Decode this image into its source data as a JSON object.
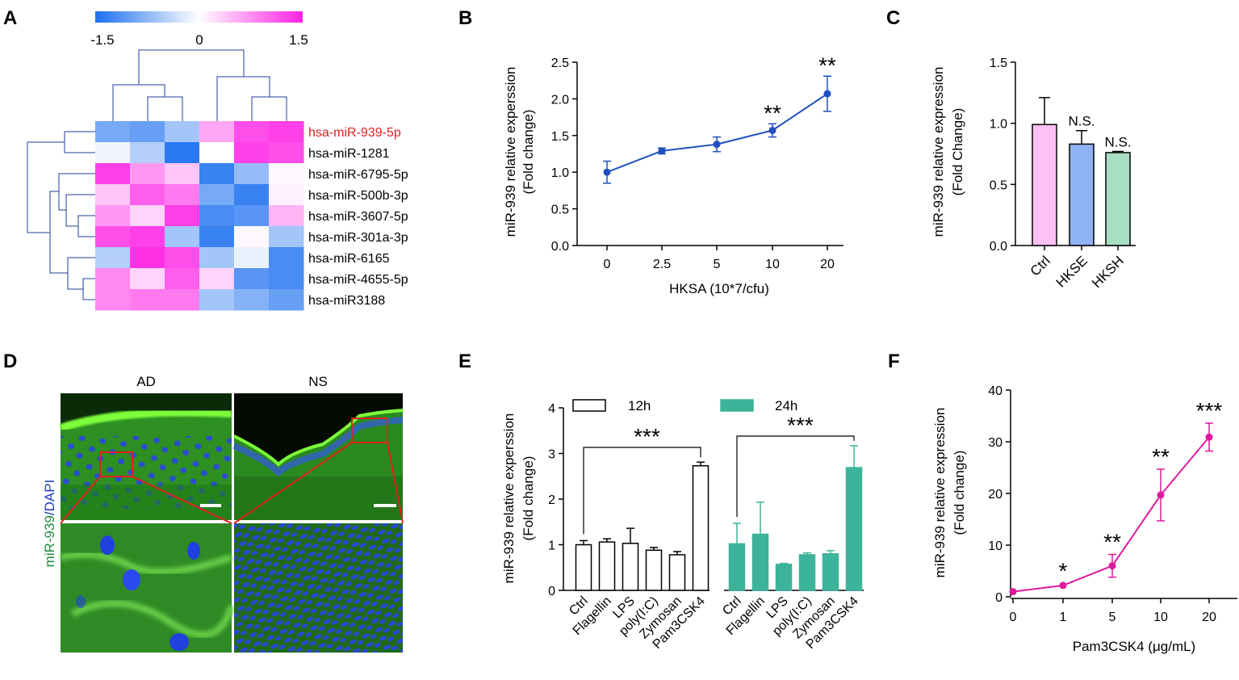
{
  "panels": {
    "A": "A",
    "B": "B",
    "C": "C",
    "D": "D",
    "E": "E",
    "F": "F"
  },
  "colors": {
    "blue": "#1f4fbf",
    "magenta": "#e0189e",
    "teal": "#3db39b",
    "pink": "#ffc0f5",
    "lightblue": "#8fb3f5",
    "mint": "#a8dfc3",
    "low": "#1b6ff0",
    "high": "#ff22e4",
    "red": "#e02020",
    "imgGreen": "#2ea02e",
    "imgBlue": "#1e3fd8",
    "labelGreen": "#1f8a3d",
    "labelBlue": "#1f3fbf"
  },
  "chart_data": [
    {
      "id": "A",
      "type": "heatmap",
      "colorbar": {
        "min": -1.5,
        "mid": 0,
        "max": 1.5,
        "tick_labels": [
          "-1.5",
          "0",
          "1.5"
        ]
      },
      "rows": [
        "hsa-miR-939-5p",
        "hsa-miR-1281",
        "hsa-miR-6795-5p",
        "hsa-miR-500b-3p",
        "hsa-miR-3607-5p",
        "hsa-miR-301a-3p",
        "hsa-miR-6165",
        "hsa-miR-4655-5p",
        "hsa-miR3188"
      ],
      "highlight_row": "hsa-miR-939-5p",
      "values": [
        [
          -0.9,
          -1.0,
          -0.6,
          0.6,
          1.2,
          1.3
        ],
        [
          -0.1,
          -0.5,
          -1.4,
          0.0,
          1.3,
          1.2
        ],
        [
          1.3,
          0.7,
          0.4,
          -1.3,
          -0.7,
          0.05
        ],
        [
          0.4,
          1.1,
          0.9,
          -0.9,
          -1.3,
          0.1
        ],
        [
          0.7,
          0.3,
          1.3,
          -1.2,
          -1.1,
          0.5
        ],
        [
          1.2,
          1.3,
          -0.6,
          -1.3,
          0.05,
          -0.6
        ],
        [
          -0.5,
          1.4,
          1.2,
          -0.6,
          -0.15,
          -1.2
        ],
        [
          0.8,
          0.3,
          1.1,
          0.3,
          -1.1,
          -1.2
        ],
        [
          0.8,
          0.9,
          0.9,
          -0.6,
          -0.8,
          -1.0
        ]
      ]
    },
    {
      "id": "B",
      "type": "line",
      "x_labels": [
        "0",
        "2.5",
        "5",
        "10",
        "20"
      ],
      "values": [
        1.0,
        1.29,
        1.38,
        1.57,
        2.07
      ],
      "errors": [
        0.15,
        0.04,
        0.1,
        0.09,
        0.24
      ],
      "significance": [
        "",
        "",
        "",
        "**",
        "**"
      ],
      "xlabel": "HKSA (10*7/cfu)",
      "ylabel": [
        "miR-939 relative  experssion",
        "(Fold change)"
      ],
      "ylim": [
        0,
        2.5
      ],
      "yticks": [
        "0.0",
        "0.5",
        "1.0",
        "1.5",
        "2.0",
        "2.5"
      ]
    },
    {
      "id": "C",
      "type": "bar",
      "categories": [
        "Ctrl",
        "HKSE",
        "HKSH"
      ],
      "values": [
        0.99,
        0.83,
        0.76
      ],
      "errors": [
        0.22,
        0.11,
        0.01
      ],
      "significance": [
        "",
        "N.S.",
        "N.S."
      ],
      "ylabel": [
        "miR-939 relative expression",
        "(Fold Change)"
      ],
      "ylim": [
        0,
        1.5
      ],
      "yticks": [
        "0.0",
        "0.5",
        "1.0",
        "1.5"
      ]
    },
    {
      "id": "E",
      "type": "bar",
      "categories": [
        "Ctrl",
        "Flagellin",
        "LPS",
        "poly(I:C)",
        "Zymosan",
        "Pam3CSK4"
      ],
      "series": [
        {
          "name": "12h",
          "values": [
            1.0,
            1.06,
            1.03,
            0.88,
            0.78,
            2.73
          ],
          "errors": [
            0.09,
            0.07,
            0.33,
            0.06,
            0.07,
            0.08
          ]
        },
        {
          "name": "24h",
          "values": [
            1.02,
            1.23,
            0.57,
            0.78,
            0.8,
            2.69
          ],
          "errors": [
            0.45,
            0.7,
            0.02,
            0.04,
            0.07,
            0.48
          ]
        }
      ],
      "significance": "***",
      "ylabel": [
        "miR-939 relative  experssion",
        "(Fold change)"
      ],
      "ylim": [
        0,
        4
      ],
      "yticks": [
        "0",
        "1",
        "2",
        "3",
        "4"
      ]
    },
    {
      "id": "F",
      "type": "line",
      "x_labels": [
        "0",
        "1",
        "5",
        "10",
        "20"
      ],
      "values": [
        1.0,
        2.2,
        6.0,
        19.7,
        30.9
      ],
      "errors": [
        0.2,
        0.4,
        2.2,
        5.0,
        2.7
      ],
      "significance": [
        "",
        "*",
        "**",
        "**",
        "***"
      ],
      "xlabel": "Pam3CSK4  (μg/mL)",
      "ylabel": [
        "miR-939 relative  expression",
        "(Fold change)"
      ],
      "ylim": [
        0,
        40
      ],
      "yticks": [
        "0",
        "10",
        "20",
        "30",
        "40"
      ]
    }
  ],
  "microscopy": {
    "columns": [
      "AD",
      "NS"
    ],
    "ylabel_green": "miR-939",
    "ylabel_sep": "/",
    "ylabel_blue": "DAPI"
  }
}
